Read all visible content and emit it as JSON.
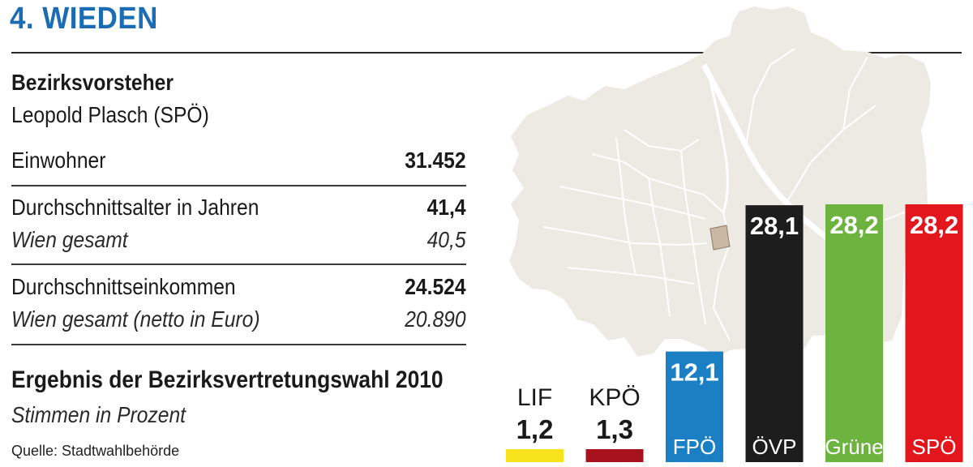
{
  "header": {
    "title": "4. WIEDEN"
  },
  "info": {
    "vorsteher_label": "Bezirksvorsteher",
    "vorsteher_name": "Leopold Plasch (SPÖ)",
    "einwohner_label": "Einwohner",
    "einwohner_value": "31.452",
    "alter_label": "Durchschnittsalter in Jahren",
    "alter_value": "41,4",
    "alter_wien_label": "Wien gesamt",
    "alter_wien_value": "40,5",
    "einkommen_label": "Durchschnittseinkommen",
    "einkommen_value": "24.524",
    "einkommen_wien_label": "Wien gesamt (netto in Euro)",
    "einkommen_wien_value": "20.890",
    "chart_title": "Ergebnis der Bezirksvertretungswahl 2010",
    "chart_subtitle": "Stimmen in Prozent",
    "source": "Quelle: Stadtwahlbehörde"
  },
  "map": {
    "land_color": "#ede9e3",
    "district_highlight_color": "#c9b9a2"
  },
  "chart_data": {
    "type": "bar",
    "title": "Ergebnis der Bezirksvertretungswahl 2010",
    "subtitle": "Stimmen in Prozent",
    "categories": [
      "LIF",
      "KPÖ",
      "FPÖ",
      "ÖVP",
      "Grüne",
      "SPÖ"
    ],
    "values": [
      1.2,
      1.3,
      12.1,
      28.1,
      28.2,
      28.2
    ],
    "value_labels": [
      "1,2",
      "1,3",
      "12,1",
      "28,1",
      "28,2",
      "28,2"
    ],
    "colors": [
      "#f6e31c",
      "#a8121d",
      "#1b7fc4",
      "#1d1d1d",
      "#6db33f",
      "#e3161e"
    ],
    "ylim": [
      0,
      28.2
    ]
  }
}
